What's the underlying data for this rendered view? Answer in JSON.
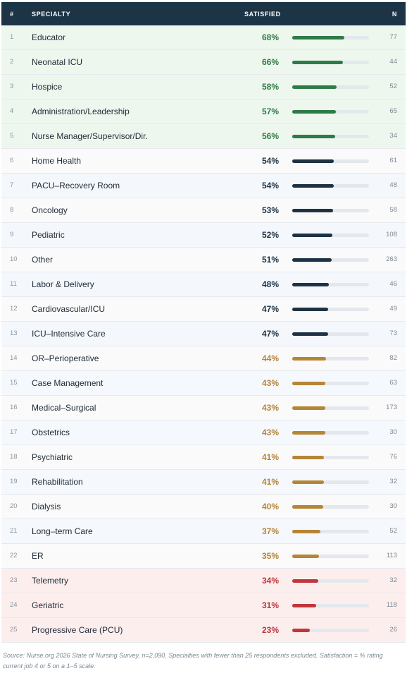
{
  "header": {
    "rank": "#",
    "specialty": "SPECIALTY",
    "satisfied": "SATISFIED",
    "n": "N"
  },
  "chart_data": {
    "type": "table",
    "columns": [
      "#",
      "SPECIALTY",
      "SATISFIED",
      "N"
    ],
    "rows": [
      {
        "rank": 1,
        "specialty": "Educator",
        "satisfied": 68,
        "label": "68%",
        "n": 77,
        "tier": "top"
      },
      {
        "rank": 2,
        "specialty": "Neonatal ICU",
        "satisfied": 66,
        "label": "66%",
        "n": 44,
        "tier": "top"
      },
      {
        "rank": 3,
        "specialty": "Hospice",
        "satisfied": 58,
        "label": "58%",
        "n": 52,
        "tier": "top"
      },
      {
        "rank": 4,
        "specialty": "Administration/Leadership",
        "satisfied": 57,
        "label": "57%",
        "n": 65,
        "tier": "top"
      },
      {
        "rank": 5,
        "specialty": "Nurse Manager/Supervisor/Dir.",
        "satisfied": 56,
        "label": "56%",
        "n": 34,
        "tier": "top"
      },
      {
        "rank": 6,
        "specialty": "Home Health",
        "satisfied": 54,
        "label": "54%",
        "n": 61,
        "tier": "mid"
      },
      {
        "rank": 7,
        "specialty": "PACU–Recovery Room",
        "satisfied": 54,
        "label": "54%",
        "n": 48,
        "tier": "mid"
      },
      {
        "rank": 8,
        "specialty": "Oncology",
        "satisfied": 53,
        "label": "53%",
        "n": 58,
        "tier": "mid"
      },
      {
        "rank": 9,
        "specialty": "Pediatric",
        "satisfied": 52,
        "label": "52%",
        "n": 108,
        "tier": "mid"
      },
      {
        "rank": 10,
        "specialty": "Other",
        "satisfied": 51,
        "label": "51%",
        "n": 263,
        "tier": "mid"
      },
      {
        "rank": 11,
        "specialty": "Labor & Delivery",
        "satisfied": 48,
        "label": "48%",
        "n": 46,
        "tier": "mid"
      },
      {
        "rank": 12,
        "specialty": "Cardiovascular/ICU",
        "satisfied": 47,
        "label": "47%",
        "n": 49,
        "tier": "mid"
      },
      {
        "rank": 13,
        "specialty": "ICU–Intensive Care",
        "satisfied": 47,
        "label": "47%",
        "n": 73,
        "tier": "mid"
      },
      {
        "rank": 14,
        "specialty": "OR–Perioperative",
        "satisfied": 44,
        "label": "44%",
        "n": 82,
        "tier": "low"
      },
      {
        "rank": 15,
        "specialty": "Case Management",
        "satisfied": 43,
        "label": "43%",
        "n": 63,
        "tier": "low"
      },
      {
        "rank": 16,
        "specialty": "Medical–Surgical",
        "satisfied": 43,
        "label": "43%",
        "n": 173,
        "tier": "low"
      },
      {
        "rank": 17,
        "specialty": "Obstetrics",
        "satisfied": 43,
        "label": "43%",
        "n": 30,
        "tier": "low"
      },
      {
        "rank": 18,
        "specialty": "Psychiatric",
        "satisfied": 41,
        "label": "41%",
        "n": 76,
        "tier": "low"
      },
      {
        "rank": 19,
        "specialty": "Rehabilitation",
        "satisfied": 41,
        "label": "41%",
        "n": 32,
        "tier": "low"
      },
      {
        "rank": 20,
        "specialty": "Dialysis",
        "satisfied": 40,
        "label": "40%",
        "n": 30,
        "tier": "low"
      },
      {
        "rank": 21,
        "specialty": "Long–term Care",
        "satisfied": 37,
        "label": "37%",
        "n": 52,
        "tier": "low"
      },
      {
        "rank": 22,
        "specialty": "ER",
        "satisfied": 35,
        "label": "35%",
        "n": 113,
        "tier": "low"
      },
      {
        "rank": 23,
        "specialty": "Telemetry",
        "satisfied": 34,
        "label": "34%",
        "n": 32,
        "tier": "bottom"
      },
      {
        "rank": 24,
        "specialty": "Geriatric",
        "satisfied": 31,
        "label": "31%",
        "n": 118,
        "tier": "bottom"
      },
      {
        "rank": 25,
        "specialty": "Progressive Care (PCU)",
        "satisfied": 23,
        "label": "23%",
        "n": 26,
        "tier": "bottom"
      }
    ],
    "bar_scale_max": 100,
    "colors": {
      "top": "#2f7b47",
      "mid": "#1f3244",
      "low": "#b58538",
      "bottom": "#c0363b"
    }
  },
  "source": "Source: Nurse.org 2026 State of Nursing Survey, n=2,090. Specialties with fewer than 25 respondents excluded. Satisfaction = % rating current job 4 or 5 on a 1–5 scale."
}
